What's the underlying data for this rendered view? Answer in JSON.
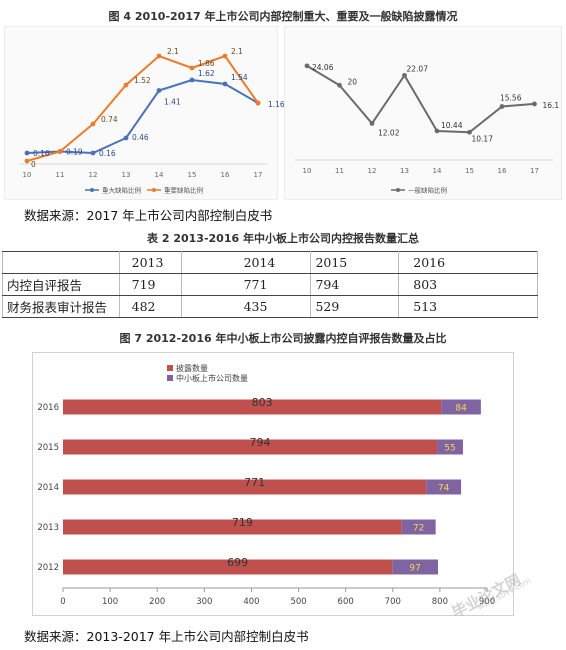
{
  "fig4": {
    "title": "图 4 2010-2017 年上市公司内部控制重大、重要及一般缺陷披露情况",
    "left_chart": {
      "type": "line",
      "x": [
        "10",
        "11",
        "12",
        "13",
        "14",
        "15",
        "16",
        "17"
      ],
      "series": [
        {
          "name": "重大缺陷比例",
          "color": "#4a72b8",
          "values": [
            0.16,
            0.19,
            0.16,
            0.46,
            1.41,
            1.62,
            1.54,
            1.16
          ]
        },
        {
          "name": "重要缺陷比例",
          "color": "#ec7c2c",
          "values": [
            0,
            0.19,
            0.74,
            1.52,
            2.1,
            1.86,
            2.1,
            1.16
          ]
        }
      ],
      "labels": {
        "blue": [
          "0.16",
          "0.19",
          "0.16",
          "0.46",
          "1.41",
          "1.62",
          "1.54",
          "1.16"
        ],
        "orange": [
          "0",
          "",
          "0.74",
          "1.52",
          "2.1",
          "1.86",
          "2.1",
          ""
        ]
      },
      "ylim": [
        0,
        2.4
      ]
    },
    "right_chart": {
      "type": "line",
      "x": [
        "10",
        "11",
        "12",
        "13",
        "14",
        "15",
        "16",
        "17"
      ],
      "series": [
        {
          "name": "一般缺陷比例",
          "color": "#6b6b6b",
          "values": [
            24.06,
            20,
            12.02,
            22.07,
            10.44,
            10.17,
            15.56,
            16.1
          ]
        }
      ],
      "labels": [
        "24.06",
        "20",
        "12.02",
        "22.07",
        "10.44",
        "10.17",
        "15.56",
        "16.1"
      ],
      "ylim": [
        5,
        28
      ]
    }
  },
  "source1": "数据来源：2017 年上市公司内部控制白皮书",
  "table2": {
    "title": "表 2 2013-2016 年中小板上市公司内控报告数量汇总",
    "headers": [
      "",
      "2013",
      "2014",
      "2015",
      "2016"
    ],
    "rows": [
      {
        "label": "内控自评报告",
        "values": [
          "719",
          "771",
          "794",
          "803"
        ]
      },
      {
        "label": "财务报表审计报告",
        "values": [
          "482",
          "435",
          "529",
          "513"
        ]
      }
    ]
  },
  "fig7": {
    "title": "图 7 2012-2016 年中小板上市公司披露内控自评报告数量及占比",
    "chart_data": {
      "type": "bar",
      "orientation": "horizontal",
      "stacked": true,
      "categories": [
        "2016",
        "2015",
        "2014",
        "2013",
        "2012"
      ],
      "series": [
        {
          "name": "披露数量",
          "color": "#c0504d",
          "values": [
            803,
            794,
            771,
            719,
            699
          ]
        },
        {
          "name": "中小板上市公司数量",
          "color": "#8064a2",
          "values": [
            84,
            55,
            74,
            72,
            97
          ]
        }
      ],
      "xticks": [
        "0",
        "100",
        "200",
        "300",
        "400",
        "500",
        "600",
        "700",
        "800",
        "900"
      ],
      "xlim": [
        0,
        900
      ],
      "legend": "top-left"
    }
  },
  "source2": "数据来源：2013-2017 年上市公司内部控制白皮书",
  "watermark": {
    "main": "毕业论文网",
    "sub": "www.sbvv.com"
  }
}
